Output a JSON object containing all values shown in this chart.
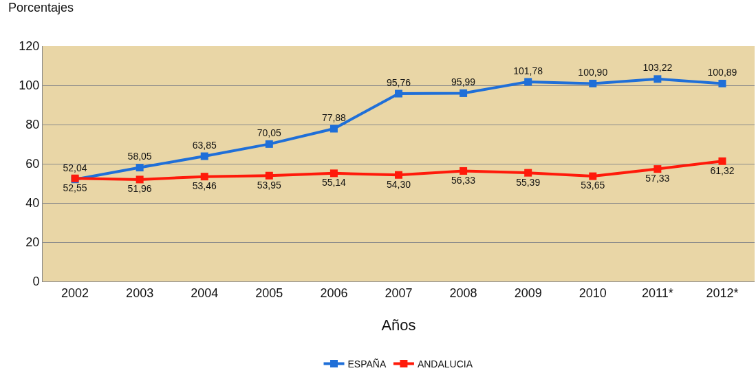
{
  "chart_data": {
    "type": "line",
    "ylabel": "Porcentajes",
    "xlabel": "Años",
    "categories": [
      "2002",
      "2003",
      "2004",
      "2005",
      "2006",
      "2007",
      "2008",
      "2009",
      "2010",
      "2011*",
      "2012*"
    ],
    "series": [
      {
        "name": "ESPAÑA",
        "color": "#1f6fd8",
        "values": [
          52.04,
          58.05,
          63.85,
          70.05,
          77.88,
          95.76,
          95.99,
          101.78,
          100.9,
          103.22,
          100.89
        ],
        "value_labels": [
          "52,04",
          "58,05",
          "63,85",
          "70,05",
          "77,88",
          "95,76",
          "95,99",
          "101,78",
          "100,90",
          "103,22",
          "100,89"
        ]
      },
      {
        "name": "ANDALUCIA",
        "color": "#ff1a0a",
        "values": [
          52.55,
          51.96,
          53.46,
          53.95,
          55.14,
          54.3,
          56.33,
          55.39,
          53.65,
          57.33,
          61.32
        ],
        "value_labels": [
          "52,55",
          "51,96",
          "53,46",
          "53,95",
          "55,14",
          "54,30",
          "56,33",
          "55,39",
          "53,65",
          "57,33",
          "61,32"
        ]
      }
    ],
    "ylim": [
      0,
      120
    ],
    "yticks": [
      0,
      20,
      40,
      60,
      80,
      100,
      120
    ],
    "grid": "y",
    "legend": "bottom",
    "marker": "square",
    "line_style": "solid"
  }
}
